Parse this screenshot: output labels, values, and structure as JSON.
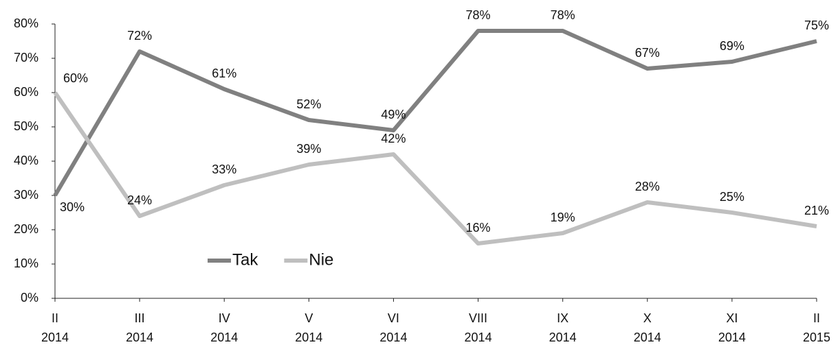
{
  "chart_data": {
    "type": "line",
    "categories": [
      [
        "II",
        "2014"
      ],
      [
        "III",
        "2014"
      ],
      [
        "IV",
        "2014"
      ],
      [
        "V",
        "2014"
      ],
      [
        "VI",
        "2014"
      ],
      [
        "VIII",
        "2014"
      ],
      [
        "IX",
        "2014"
      ],
      [
        "X",
        "2014"
      ],
      [
        "XI",
        "2014"
      ],
      [
        "II",
        "2015"
      ]
    ],
    "series": [
      {
        "name": "Tak",
        "color": "#808080",
        "values": [
          30,
          72,
          61,
          52,
          49,
          78,
          78,
          67,
          69,
          75
        ],
        "value_labels": [
          "30%",
          "72%",
          "61%",
          "52%",
          "49%",
          "78%",
          "78%",
          "67%",
          "69%",
          "75%"
        ]
      },
      {
        "name": "Nie",
        "color": "#bfbfbf",
        "values": [
          60,
          24,
          33,
          39,
          42,
          16,
          19,
          28,
          25,
          21
        ],
        "value_labels": [
          "60%",
          "24%",
          "33%",
          "39%",
          "42%",
          "16%",
          "19%",
          "28%",
          "25%",
          "21%"
        ]
      }
    ],
    "ylim": [
      0,
      80
    ],
    "yticks": [
      {
        "value": 0,
        "label": "0%"
      },
      {
        "value": 10,
        "label": "10%"
      },
      {
        "value": 20,
        "label": "20%"
      },
      {
        "value": 30,
        "label": "30%"
      },
      {
        "value": 40,
        "label": "40%"
      },
      {
        "value": 50,
        "label": "50%"
      },
      {
        "value": 60,
        "label": "60%"
      },
      {
        "value": 70,
        "label": "70%"
      },
      {
        "value": 80,
        "label": "80%"
      }
    ],
    "grid": false,
    "legend": "lower left"
  }
}
